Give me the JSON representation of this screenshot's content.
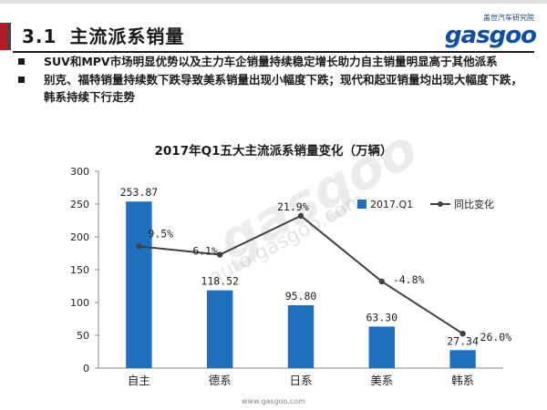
{
  "header": {
    "section_number": "3.1",
    "section_title": "主流派系销量",
    "logo_top": "盖世汽车研究院",
    "logo_word": "gasgoo"
  },
  "bullets": [
    "SUV和MPV市场明显优势以及主力车企销量持续稳定增长助力自主销量明显高于其他派系",
    "别克、福特销量持续数下跌导致美系销量出现小幅度下跌；现代和起亚销量均出现大幅度下跌，韩系持续下行走势"
  ],
  "watermark": {
    "main": "gasgoo",
    "sub": "auto.gasgoo.com",
    "footer": "www.gasgoo.com"
  },
  "chart_data": {
    "type": "bar",
    "title": "2017年Q1五大主流派系销量变化（万辆）",
    "categories": [
      "自主",
      "德系",
      "日系",
      "美系",
      "韩系"
    ],
    "series": [
      {
        "name": "2017.Q1",
        "type": "bar",
        "values": [
          253.87,
          118.52,
          95.8,
          63.3,
          27.34
        ],
        "labels": [
          "253.87",
          "118.52",
          "95.80",
          "63.30",
          "27.34"
        ],
        "color": "#1f6fbf"
      },
      {
        "name": "同比变化",
        "type": "line",
        "values": [
          9.5,
          6.1,
          21.9,
          -4.8,
          -26.0
        ],
        "labels": [
          "9.5%",
          "6.1%",
          "21.9%",
          "-4.8%",
          "-26.0%"
        ],
        "color": "#404040"
      }
    ],
    "y_ticks": [
      0,
      50,
      100,
      150,
      200,
      250,
      300
    ],
    "ylim": [
      0,
      300
    ],
    "legend_position": "top-right"
  }
}
